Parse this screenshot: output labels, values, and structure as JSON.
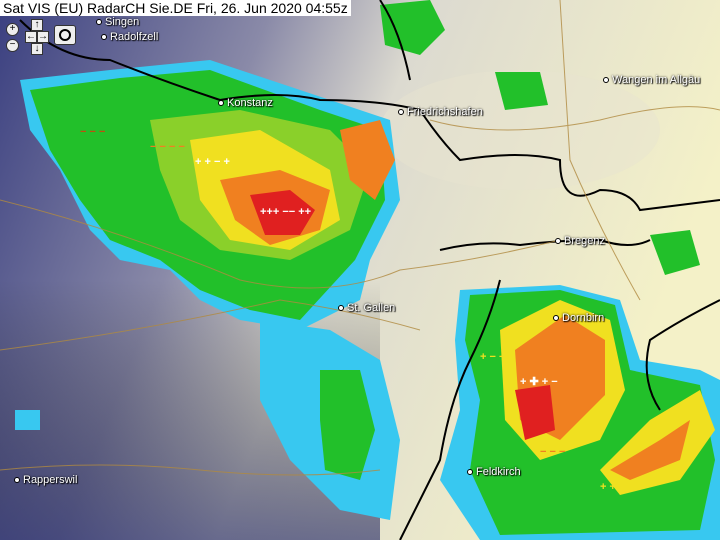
{
  "title": "Sat VIS (EU) RadarCH Sie.DE Fri, 26. Jun 2020 04:55z",
  "cities": [
    {
      "name": "Singen"
    },
    {
      "name": "Radolfzell"
    },
    {
      "name": "Konstanz"
    },
    {
      "name": "Friedrichshafen"
    },
    {
      "name": "Wangen im Allgäu"
    },
    {
      "name": "Bregenz"
    },
    {
      "name": "St. Gallen"
    },
    {
      "name": "Dornbirn"
    },
    {
      "name": "Feldkirch"
    },
    {
      "name": "Rapperswil"
    }
  ],
  "controls": {
    "zoom_in": "+",
    "zoom_out": "−",
    "pan_up": "↑",
    "pan_down": "↓",
    "pan_left": "←",
    "pan_right": "→",
    "camera_icon": "camera-icon"
  },
  "colors": {
    "satellite_dark": "#2a3070",
    "satellite_bright": "#f3f0c8",
    "radar_green": "#22c02a",
    "radar_yellow": "#f0e020",
    "radar_orange": "#f08020",
    "radar_red": "#e02020",
    "radar_cyan": "#40d8f0",
    "border": "#000000",
    "roads": "#b08a40"
  }
}
